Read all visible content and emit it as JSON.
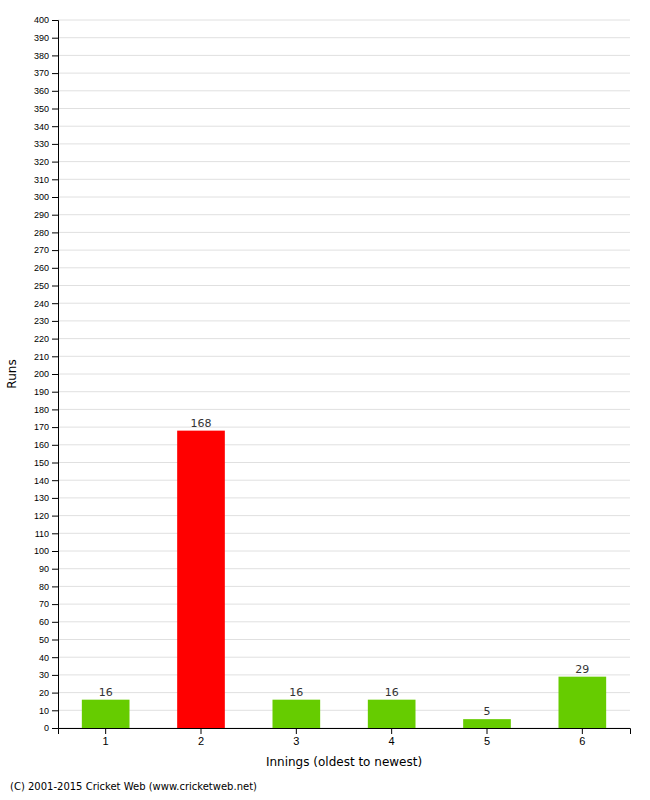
{
  "chart_data": {
    "type": "bar",
    "categories": [
      1,
      2,
      3,
      4,
      5,
      6
    ],
    "values": [
      16,
      168,
      16,
      16,
      5,
      29
    ],
    "colors": [
      "#66cc00",
      "#ff0000",
      "#66cc00",
      "#66cc00",
      "#66cc00",
      "#66cc00"
    ],
    "xlabel": "Innings (oldest to newest)",
    "ylabel": "Runs",
    "ylim": [
      0,
      400
    ],
    "yticks": [
      0,
      10,
      20,
      30,
      40,
      50,
      60,
      70,
      80,
      90,
      100,
      110,
      120,
      130,
      140,
      150,
      160,
      170,
      180,
      190,
      200,
      210,
      220,
      230,
      240,
      250,
      260,
      270,
      280,
      290,
      300,
      310,
      320,
      330,
      340,
      350,
      360,
      370,
      380,
      390,
      400
    ],
    "grid": true,
    "data_labels": true,
    "footer": "(C) 2001-2015 Cricket Web (www.cricketweb.net)"
  }
}
